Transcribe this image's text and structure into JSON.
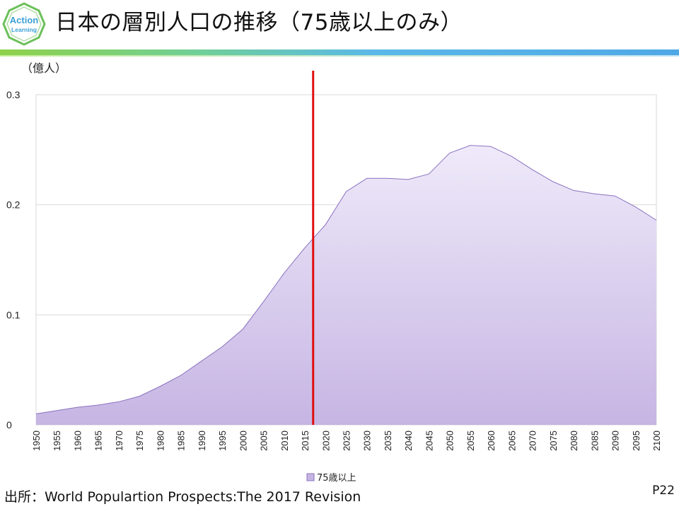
{
  "header": {
    "logo_text_1": "Action",
    "logo_text_2": "Learning",
    "title": "日本の層別人口の推移（75歳以上のみ）"
  },
  "chart_data": {
    "type": "area",
    "unit_label": "（億人）",
    "ylim": [
      0,
      0.3
    ],
    "y_ticks": [
      {
        "value": 0,
        "label": "0"
      },
      {
        "value": 0.1,
        "label": "0.1"
      },
      {
        "value": 0.2,
        "label": "0.2"
      },
      {
        "value": 0.3,
        "label": "0.3"
      }
    ],
    "x": [
      1950,
      1955,
      1960,
      1965,
      1970,
      1975,
      1980,
      1985,
      1990,
      1995,
      2000,
      2005,
      2010,
      2015,
      2020,
      2025,
      2030,
      2035,
      2040,
      2045,
      2050,
      2055,
      2060,
      2065,
      2070,
      2075,
      2080,
      2085,
      2090,
      2095,
      2100
    ],
    "series": [
      {
        "name": "75歳以上",
        "values": [
          0.01,
          0.013,
          0.016,
          0.018,
          0.021,
          0.026,
          0.035,
          0.045,
          0.058,
          0.071,
          0.087,
          0.112,
          0.138,
          0.161,
          0.182,
          0.212,
          0.224,
          0.224,
          0.223,
          0.228,
          0.247,
          0.254,
          0.253,
          0.244,
          0.232,
          0.221,
          0.213,
          0.21,
          0.208,
          0.198,
          0.186
        ]
      }
    ],
    "marker_line_x": 2017,
    "legend_position": "bottom",
    "grid": true,
    "colors": {
      "fill_top": "#efeafa",
      "fill_bottom": "#c6b5e3",
      "stroke": "#8a72bf",
      "marker": "#e01010",
      "grid": "#d9d9d9"
    }
  },
  "footer": {
    "source": "出所：World  Populartion  Prospects:The  2017  Revision",
    "page": "P22"
  }
}
